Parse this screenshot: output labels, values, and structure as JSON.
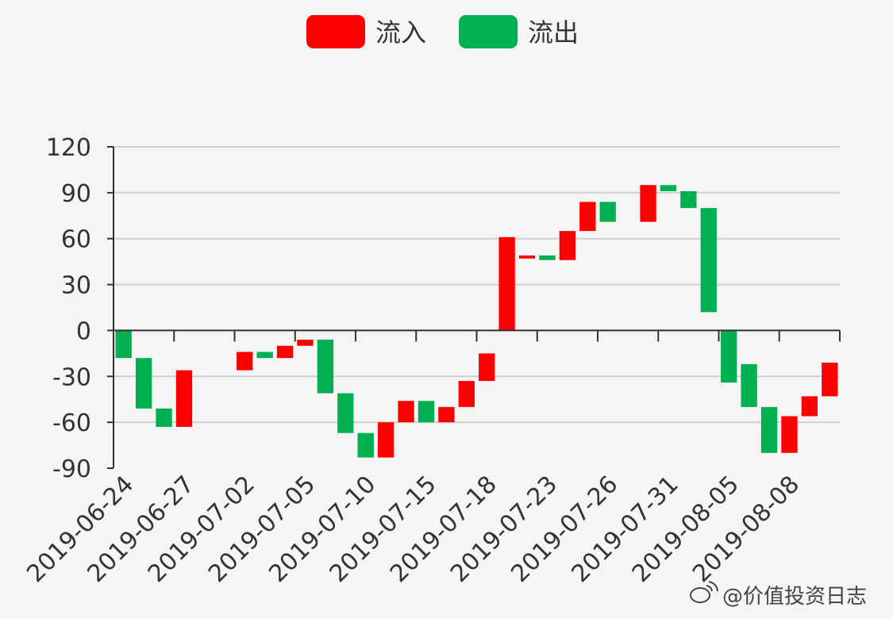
{
  "chart_data": {
    "type": "bar",
    "subtype": "waterfall",
    "legend": {
      "placement": "top-center",
      "items": [
        {
          "label": "流入",
          "color": "#ff0000"
        },
        {
          "label": "流出",
          "color": "#00b050"
        }
      ]
    },
    "y_axis": {
      "ylim": [
        -90,
        120
      ],
      "ticks": [
        "120",
        "90",
        "60",
        "30",
        "0",
        "-30",
        "-60",
        "-90"
      ],
      "grid": true
    },
    "x_tick_labels": [
      "2019-06-24",
      "2019-06-27",
      "2019-07-02",
      "2019-07-05",
      "2019-07-10",
      "2019-07-15",
      "2019-07-18",
      "2019-07-23",
      "2019-07-26",
      "2019-07-31",
      "2019-08-05",
      "2019-08-08"
    ],
    "bars": [
      {
        "type": "out",
        "from": 0,
        "to": -18
      },
      {
        "type": "out",
        "from": -18,
        "to": -51
      },
      {
        "type": "out",
        "from": -51,
        "to": -63
      },
      {
        "type": "in",
        "from": -63,
        "to": -26
      },
      null,
      null,
      {
        "type": "in",
        "from": -26,
        "to": -14
      },
      {
        "type": "out",
        "from": -14,
        "to": -18
      },
      {
        "type": "in",
        "from": -18,
        "to": -10
      },
      {
        "type": "in",
        "from": -10,
        "to": -6
      },
      {
        "type": "out",
        "from": -6,
        "to": -41
      },
      {
        "type": "out",
        "from": -41,
        "to": -67
      },
      {
        "type": "out",
        "from": -67,
        "to": -83
      },
      {
        "type": "in",
        "from": -83,
        "to": -60
      },
      {
        "type": "in",
        "from": -60,
        "to": -46
      },
      {
        "type": "out",
        "from": -46,
        "to": -60
      },
      {
        "type": "in",
        "from": -60,
        "to": -50
      },
      {
        "type": "in",
        "from": -50,
        "to": -33
      },
      {
        "type": "in",
        "from": -33,
        "to": -15
      },
      {
        "type": "in",
        "from": 0,
        "to": 61
      },
      {
        "type": "in",
        "from": 47,
        "to": 49
      },
      {
        "type": "out",
        "from": 49,
        "to": 46
      },
      {
        "type": "in",
        "from": 46,
        "to": 65
      },
      {
        "type": "in",
        "from": 65,
        "to": 84
      },
      {
        "type": "out",
        "from": 84,
        "to": 71
      },
      null,
      {
        "type": "in",
        "from": 71,
        "to": 95
      },
      {
        "type": "out",
        "from": 95,
        "to": 91
      },
      {
        "type": "out",
        "from": 91,
        "to": 80
      },
      {
        "type": "out",
        "from": 80,
        "to": 12
      },
      {
        "type": "out",
        "from": 0,
        "to": -34
      },
      {
        "type": "out",
        "from": -22,
        "to": -50
      },
      {
        "type": "out",
        "from": -50,
        "to": -80
      },
      {
        "type": "in",
        "from": -80,
        "to": -56
      },
      {
        "type": "in",
        "from": -56,
        "to": -43
      },
      {
        "type": "in",
        "from": -43,
        "to": -21
      }
    ]
  },
  "watermark": "@价值投资日志"
}
